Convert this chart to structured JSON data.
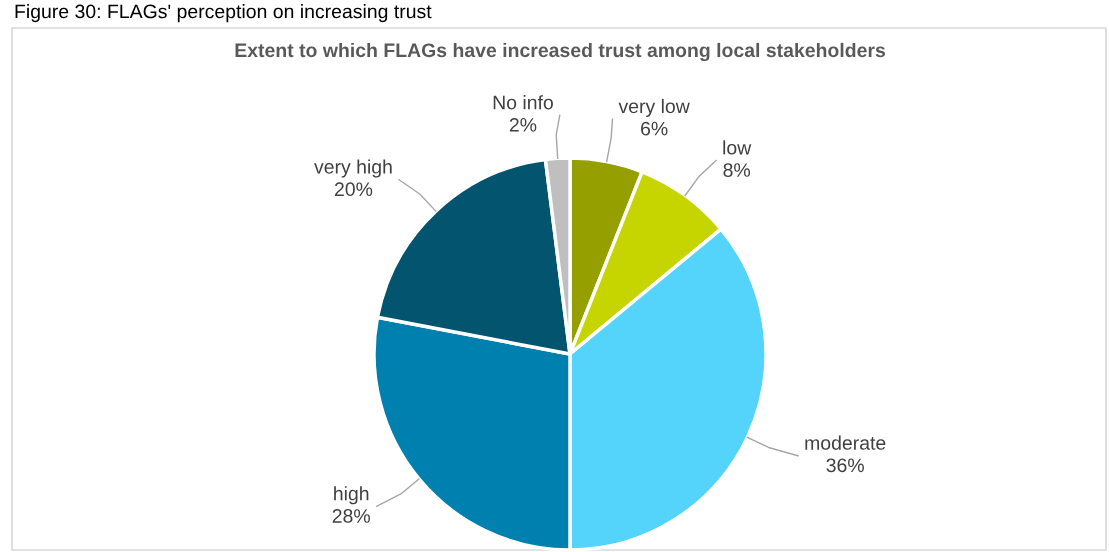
{
  "chart_data": {
    "type": "pie",
    "title": "Extent to which FLAGs have increased trust among local stakeholders",
    "annotations": [
      "Figure 30: FLAGs' perception on increasing trust"
    ],
    "categories": [
      "very low",
      "low",
      "moderate",
      "high",
      "very high",
      "No info"
    ],
    "values": [
      6,
      8,
      36,
      28,
      20,
      2
    ],
    "colors": [
      "#969f00",
      "#c6d400",
      "#55d4fb",
      "#0080ae",
      "#02546f",
      "#bfbfbf"
    ],
    "value_labels": [
      "6%",
      "8%",
      "36%",
      "28%",
      "20%",
      "2%"
    ],
    "legend": false
  }
}
